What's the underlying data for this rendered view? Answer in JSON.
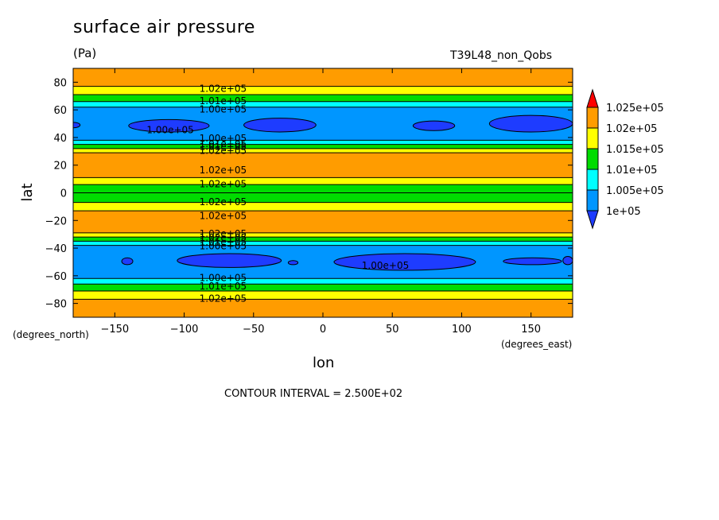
{
  "chart_data": {
    "type": "contour",
    "title": "surface air pressure",
    "units": "(Pa)",
    "run_label": "T39L48_non_Qobs",
    "xlabel": "lon",
    "ylabel": "lat",
    "x_unit_label": "(degrees_east)",
    "y_unit_label": "(degrees_north)",
    "xlim": [
      -180,
      180
    ],
    "ylim": [
      -90,
      90
    ],
    "x_ticks": [
      -150,
      -100,
      -50,
      0,
      50,
      100,
      150
    ],
    "y_ticks": [
      -80,
      -60,
      -40,
      -20,
      0,
      20,
      40,
      60,
      80
    ],
    "contour_interval_text": "CONTOUR INTERVAL = 2.500E+02",
    "colorbar": {
      "levels": [
        "1.025e+05",
        "1.02e+05",
        "1.015e+05",
        "1.01e+05",
        "1.005e+05",
        "1e+05"
      ],
      "colors": [
        "#ff9c00",
        "#ffff00",
        "#00dc00",
        "#00ffff",
        "#0096ff"
      ],
      "above_color": "#ff0000",
      "below_color": "#1e3cff"
    },
    "zonal_bands": [
      {
        "lat": [
          77,
          90
        ],
        "value": 102000
      },
      {
        "lat": [
          71,
          77
        ],
        "value": 101500
      },
      {
        "lat": [
          66,
          71
        ],
        "value": 101000
      },
      {
        "lat": [
          62,
          66
        ],
        "value": 100500
      },
      {
        "lat": [
          38,
          62
        ],
        "value": 100250
      },
      {
        "lat": [
          35,
          38
        ],
        "value": 100500
      },
      {
        "lat": [
          32,
          35
        ],
        "value": 101000
      },
      {
        "lat": [
          29,
          32
        ],
        "value": 101500
      },
      {
        "lat": [
          11,
          29
        ],
        "value": 102250
      },
      {
        "lat": [
          6,
          11
        ],
        "value": 101750
      },
      {
        "lat": [
          -7,
          6
        ],
        "value": 101250
      },
      {
        "lat": [
          -13,
          0
        ],
        "value": 101250
      },
      {
        "lat": [
          -13,
          -7
        ],
        "value": 101750
      },
      {
        "lat": [
          -29,
          -13
        ],
        "value": 102250
      },
      {
        "lat": [
          -32,
          -29
        ],
        "value": 101500
      },
      {
        "lat": [
          -35,
          -32
        ],
        "value": 101000
      },
      {
        "lat": [
          -38,
          -35
        ],
        "value": 100500
      },
      {
        "lat": [
          -62,
          -38
        ],
        "value": 100250
      },
      {
        "lat": [
          -66,
          -62
        ],
        "value": 100500
      },
      {
        "lat": [
          -71,
          -66
        ],
        "value": 101000
      },
      {
        "lat": [
          -77,
          -71
        ],
        "value": 101500
      },
      {
        "lat": [
          -90,
          -77
        ],
        "value": 102000
      }
    ],
    "low_cells": [
      {
        "lon": [
          -185,
          -175
        ],
        "lat": [
          47,
          51
        ],
        "value": 99900
      },
      {
        "lon": [
          -140,
          -82
        ],
        "lat": [
          44,
          53
        ],
        "value": 99900
      },
      {
        "lon": [
          -57,
          -5
        ],
        "lat": [
          44,
          54
        ],
        "value": 99900
      },
      {
        "lon": [
          65,
          95
        ],
        "lat": [
          45,
          52
        ],
        "value": 99900
      },
      {
        "lon": [
          120,
          180
        ],
        "lat": [
          44,
          56
        ],
        "value": 99900
      },
      {
        "lon": [
          -145,
          -137
        ],
        "lat": [
          -47,
          -52
        ],
        "value": 99900
      },
      {
        "lon": [
          -105,
          -30
        ],
        "lat": [
          -44,
          -54
        ],
        "value": 99900
      },
      {
        "lon": [
          -25,
          -18
        ],
        "lat": [
          -49,
          -52
        ],
        "value": 99900
      },
      {
        "lon": [
          8,
          110
        ],
        "lat": [
          -44,
          -56
        ],
        "value": 99900
      },
      {
        "lon": [
          130,
          172
        ],
        "lat": [
          -47,
          -52
        ],
        "value": 99900
      },
      {
        "lon": [
          173,
          180
        ],
        "lat": [
          -46,
          -52
        ],
        "value": 99900
      }
    ],
    "contour_labels": [
      {
        "text": "1.02e+05",
        "lon": -72,
        "lat": 76
      },
      {
        "text": "1.01e+05",
        "lon": -72,
        "lat": 67
      },
      {
        "text": "1.00e+05",
        "lon": -72,
        "lat": 61
      },
      {
        "text": "1.00e+05",
        "lon": -110,
        "lat": 46
      },
      {
        "text": "1.00e+05",
        "lon": -72,
        "lat": 40
      },
      {
        "text": "1.01e+05",
        "lon": -72,
        "lat": 36
      },
      {
        "text": "1.01e+05",
        "lon": -72,
        "lat": 34
      },
      {
        "text": "1.02e+05",
        "lon": -72,
        "lat": 31
      },
      {
        "text": "1.02e+05",
        "lon": -72,
        "lat": 17
      },
      {
        "text": "1.02e+05",
        "lon": -72,
        "lat": 7
      },
      {
        "text": "1.02e+05",
        "lon": -72,
        "lat": -6
      },
      {
        "text": "1.02e+05",
        "lon": -72,
        "lat": -16
      },
      {
        "text": "1.02e+05",
        "lon": -72,
        "lat": -29
      },
      {
        "text": "1.02e+05",
        "lon": -72,
        "lat": -32
      },
      {
        "text": "1.01e+05",
        "lon": -72,
        "lat": -35
      },
      {
        "text": "1.00e+05",
        "lon": -72,
        "lat": -38
      },
      {
        "text": "1.00e+05",
        "lon": 45,
        "lat": -52
      },
      {
        "text": "1.00e+05",
        "lon": -72,
        "lat": -61
      },
      {
        "text": "1.01e+05",
        "lon": -72,
        "lat": -67
      },
      {
        "text": "1.02e+05",
        "lon": -72,
        "lat": -76
      }
    ]
  }
}
